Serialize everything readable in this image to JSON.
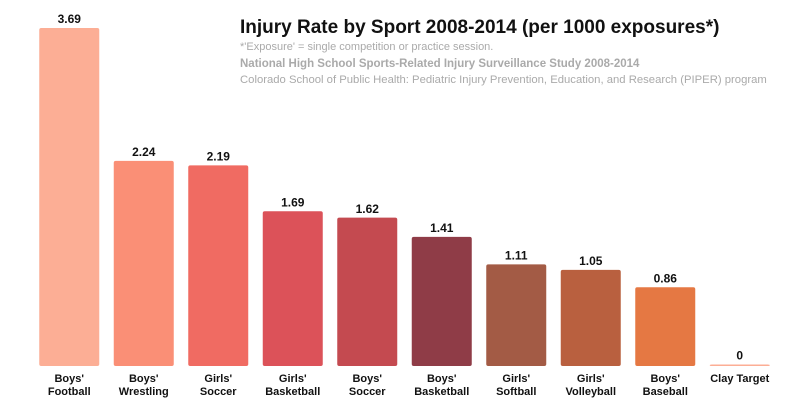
{
  "chart_data": {
    "type": "bar",
    "title": "Injury Rate by Sport 2008-2014 (per 1000 exposures*)",
    "notes": [
      "*'Exposure' = single competition or practice session.",
      "National High School Sports-Related Injury Surveillance Study 2008-2014",
      "Colorado School of Public Health: Pediatric Injury Prevention, Education, and Research (PIPER) program"
    ],
    "categories": [
      [
        "Boys'",
        "Football"
      ],
      [
        "Boys'",
        "Wrestling"
      ],
      [
        "Girls'",
        "Soccer"
      ],
      [
        "Girls'",
        "Basketball"
      ],
      [
        "Boys'",
        "Soccer"
      ],
      [
        "Boys'",
        "Basketball"
      ],
      [
        "Girls'",
        "Softball"
      ],
      [
        "Girls'",
        "Volleyball"
      ],
      [
        "Boys'",
        "Baseball"
      ],
      [
        "Clay Target"
      ]
    ],
    "values": [
      3.69,
      2.24,
      2.19,
      1.69,
      1.62,
      1.41,
      1.11,
      1.05,
      0.86,
      0
    ],
    "colors": [
      "#fcae95",
      "#fa8f76",
      "#f06b62",
      "#dc5259",
      "#c44a50",
      "#8f3c47",
      "#a35b45",
      "#b9603f",
      "#e57843",
      "#fcae95"
    ]
  }
}
